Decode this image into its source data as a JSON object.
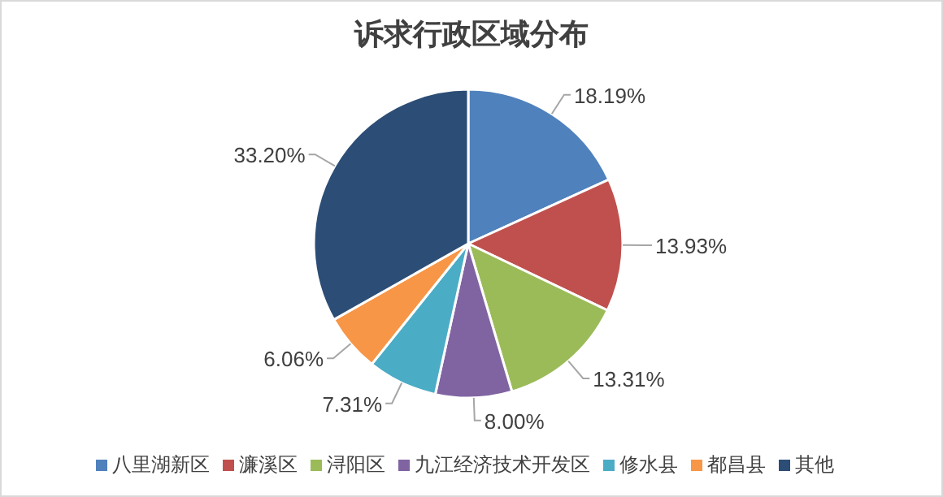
{
  "chart_data": {
    "type": "pie",
    "title": "诉求行政区域分布",
    "categories": [
      "八里湖新区",
      "濂溪区",
      "浔阳区",
      "九江经济技术开发区",
      "修水县",
      "都昌县",
      "其他"
    ],
    "values": [
      18.19,
      13.93,
      13.31,
      8.0,
      7.31,
      6.06,
      33.2
    ],
    "colors": [
      "#4f81bd",
      "#c0504d",
      "#9bbb59",
      "#8064a2",
      "#4bacc6",
      "#f79646",
      "#2c4d75"
    ],
    "value_labels": [
      "18.19%",
      "13.93%",
      "13.31%",
      "8.00%",
      "7.31%",
      "6.06%",
      "33.20%"
    ],
    "legend": "bottom"
  }
}
